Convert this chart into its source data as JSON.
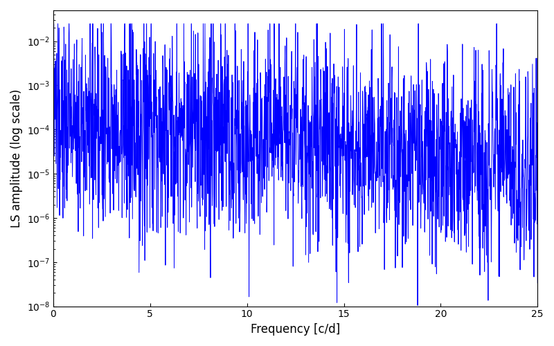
{
  "title": "",
  "xlabel": "Frequency [c/d]",
  "ylabel": "LS amplitude (log scale)",
  "line_color": "#0000FF",
  "line_width": 0.7,
  "xlim": [
    0,
    25
  ],
  "ylim": [
    1e-08,
    0.05
  ],
  "figsize": [
    8.0,
    5.0
  ],
  "dpi": 100,
  "seed": 137,
  "n_points": 2000,
  "freq_max": 25.0,
  "background_color": "#ffffff",
  "base_log_mean": -3.8,
  "base_log_std": 1.2,
  "envelope_decay": 0.04,
  "max_clip": 0.025,
  "min_clip": 1e-08
}
